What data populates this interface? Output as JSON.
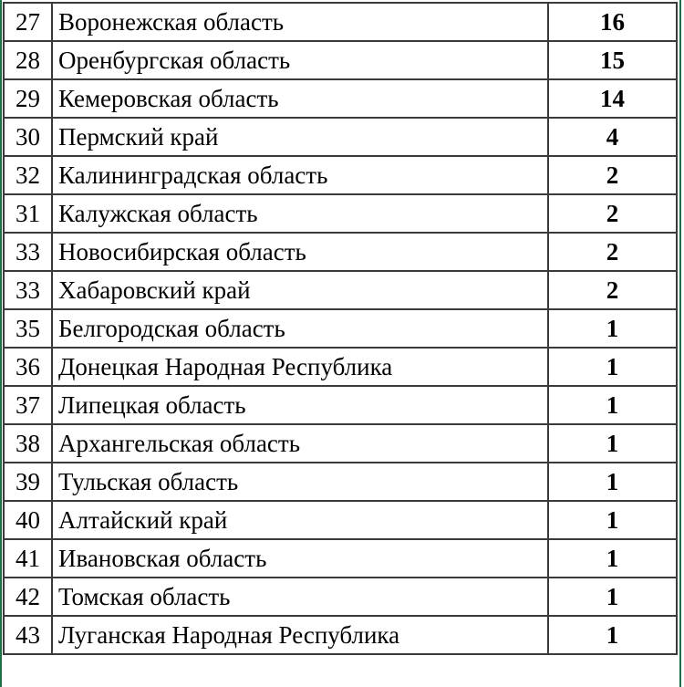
{
  "rows": [
    {
      "n": "27",
      "name": "Воронежская область",
      "value": "16"
    },
    {
      "n": "28",
      "name": "Оренбургская область",
      "value": "15"
    },
    {
      "n": "29",
      "name": "Кемеровская область",
      "value": "14"
    },
    {
      "n": "30",
      "name": "Пермский край",
      "value": "4"
    },
    {
      "n": "32",
      "name": "Калининградская область",
      "value": "2"
    },
    {
      "n": "31",
      "name": "Калужская область",
      "value": "2"
    },
    {
      "n": "33",
      "name": "Новосибирская область",
      "value": "2"
    },
    {
      "n": "33",
      "name": "Хабаровский край",
      "value": "2"
    },
    {
      "n": "35",
      "name": "Белгородская область",
      "value": "1"
    },
    {
      "n": "36",
      "name": "Донецкая Народная Республика",
      "value": "1"
    },
    {
      "n": "37",
      "name": "Липецкая область",
      "value": "1"
    },
    {
      "n": "38",
      "name": "Архангельская область",
      "value": "1"
    },
    {
      "n": "39",
      "name": "Тульская область",
      "value": "1"
    },
    {
      "n": "40",
      "name": "Алтайский край",
      "value": "1"
    },
    {
      "n": "41",
      "name": "Ивановская область",
      "value": "1"
    },
    {
      "n": "42",
      "name": "Томская область",
      "value": "1"
    },
    {
      "n": "43",
      "name": "Луганская Народная Республика",
      "value": "1"
    }
  ],
  "colors": {
    "selection_border": "#1e7145",
    "grid": "#3a3a3a"
  }
}
